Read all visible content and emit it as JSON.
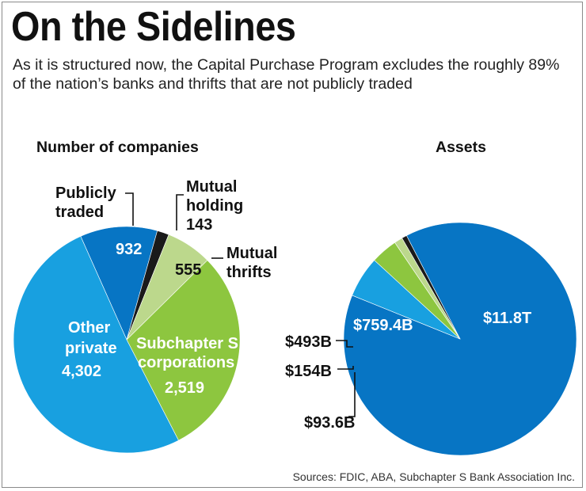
{
  "title": "On the Sidelines",
  "subtitle": "As it is structured now, the Capital Purchase Program excludes the roughly 89% of the nation’s banks and thrifts that are not publicly traded",
  "source": "Sources: FDIC, ABA, Subchapter S Bank Association Inc.",
  "colors": {
    "publicly_traded": "#0775c4",
    "mutual_holding": "#1a1a1a",
    "mutual_thrifts": "#bcd88c",
    "subchapter_s": "#8dc63f",
    "other_private": "#18a0e0",
    "assets_main": "#0775c4"
  },
  "chart_data": [
    {
      "type": "pie",
      "title": "Number of companies",
      "slices": [
        {
          "label": [
            "Publicly",
            "traded"
          ],
          "value": 932,
          "value_label": "932",
          "color": "#0775c4"
        },
        {
          "label": [
            "Mutual",
            "holding"
          ],
          "value": 143,
          "value_label": "143",
          "color": "#1a1a1a"
        },
        {
          "label": [
            "Mutual",
            "thrifts"
          ],
          "value": 555,
          "value_label": "555",
          "color": "#bcd88c"
        },
        {
          "label": [
            "Subchapter S",
            "corporations"
          ],
          "value": 2519,
          "value_label": "2,519",
          "color": "#8dc63f"
        },
        {
          "label": [
            "Other",
            "private"
          ],
          "value": 4302,
          "value_label": "4,302",
          "color": "#18a0e0"
        }
      ]
    },
    {
      "type": "pie",
      "title": "Assets",
      "unit": "billion dollars",
      "slices": [
        {
          "value": 11800,
          "value_label": "$11.8T",
          "color": "#0775c4"
        },
        {
          "value": 759.4,
          "value_label": "$759.4B",
          "color": "#18a0e0"
        },
        {
          "value": 493,
          "value_label": "$493B",
          "color": "#8dc63f"
        },
        {
          "value": 154,
          "value_label": "$154B",
          "color": "#bcd88c"
        },
        {
          "value": 93.6,
          "value_label": "$93.6B",
          "color": "#1a1a1a"
        }
      ]
    }
  ]
}
